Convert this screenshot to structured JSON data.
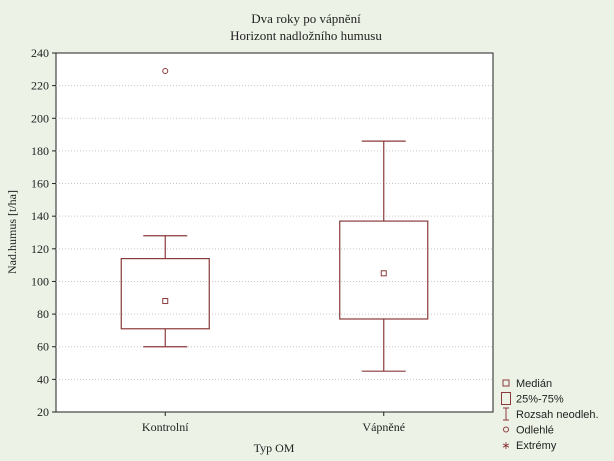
{
  "chart_data": {
    "type": "box",
    "title": "Dva roky po vápnění",
    "subtitle": "Horizont nadložního humusu",
    "xlabel": "Typ OM",
    "ylabel": "Nad.humus [t/ha]",
    "ylim": [
      20,
      240
    ],
    "yticks": [
      20,
      40,
      60,
      80,
      100,
      120,
      140,
      160,
      180,
      200,
      220,
      240
    ],
    "grid": true,
    "categories": [
      "Kontrolní",
      "Vápněné"
    ],
    "boxes": [
      {
        "category": "Kontrolní",
        "median": 88,
        "q1": 71,
        "q3": 114,
        "min": 60,
        "max": 128,
        "outliers": [
          229
        ]
      },
      {
        "category": "Vápněné",
        "median": 105,
        "q1": 77,
        "q3": 137,
        "min": 45,
        "max": 186,
        "outliers": []
      }
    ],
    "legend": {
      "placement": "bottom-right",
      "entries": [
        {
          "label": "Medián",
          "symbol": "small-square"
        },
        {
          "label": "25%-75%",
          "symbol": "box"
        },
        {
          "label": "Rozsah neodleh.",
          "symbol": "whisker"
        },
        {
          "label": "Odlehlé",
          "symbol": "circle"
        },
        {
          "label": "Extrémy",
          "symbol": "star"
        }
      ]
    },
    "colors": {
      "background": "#ecf3e6",
      "plot": "#ffffff",
      "box": "#8b3a3a",
      "text": "#222222",
      "grid": "#c8c8c8"
    }
  }
}
